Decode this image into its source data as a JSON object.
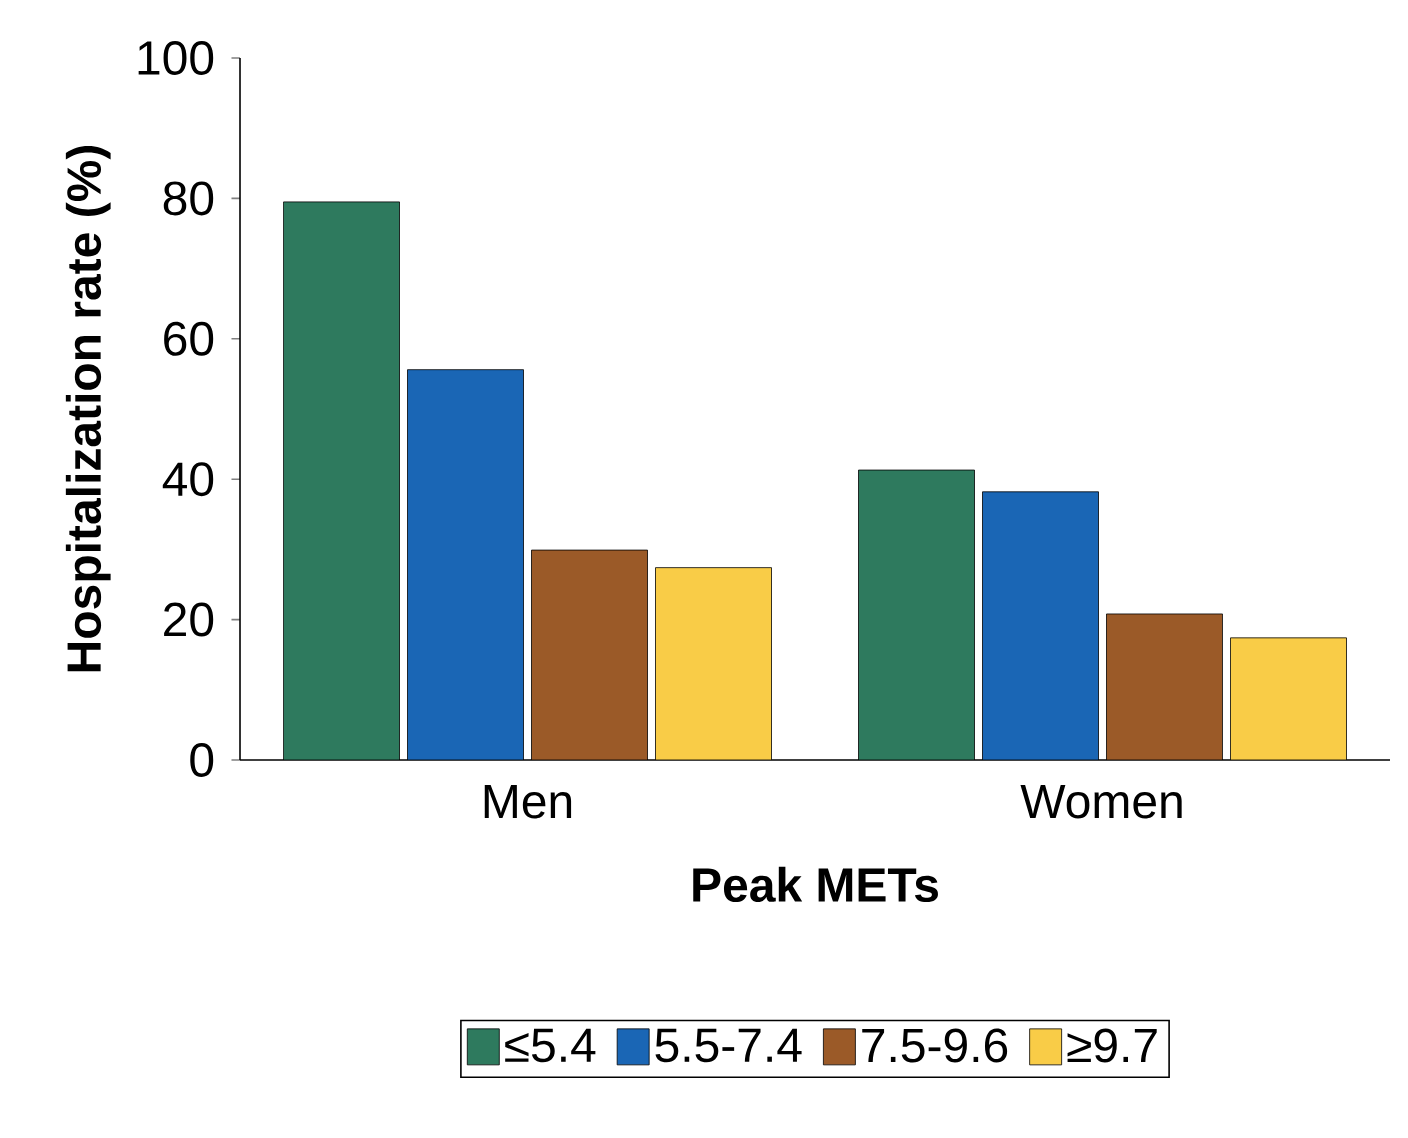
{
  "chart_data": {
    "type": "bar",
    "xlabel": "Peak METs",
    "ylabel": "Hospitalization rate (%)",
    "categories": [
      "Men",
      "Women"
    ],
    "series": [
      {
        "name": "≤5.4",
        "color": "#2e7a5e",
        "values": [
          79.5,
          41.3
        ]
      },
      {
        "name": "5.5-7.4",
        "color": "#1a66b5",
        "values": [
          55.6,
          38.2
        ]
      },
      {
        "name": "7.5-9.6",
        "color": "#9b5a28",
        "values": [
          29.9,
          20.8
        ]
      },
      {
        "name": "≥9.7",
        "color": "#f9cc47",
        "values": [
          27.4,
          17.4
        ]
      }
    ],
    "ylim": [
      0,
      100
    ],
    "yticks": [
      0,
      20,
      40,
      60,
      80,
      100
    ],
    "legend": "bottom",
    "grid": false
  }
}
